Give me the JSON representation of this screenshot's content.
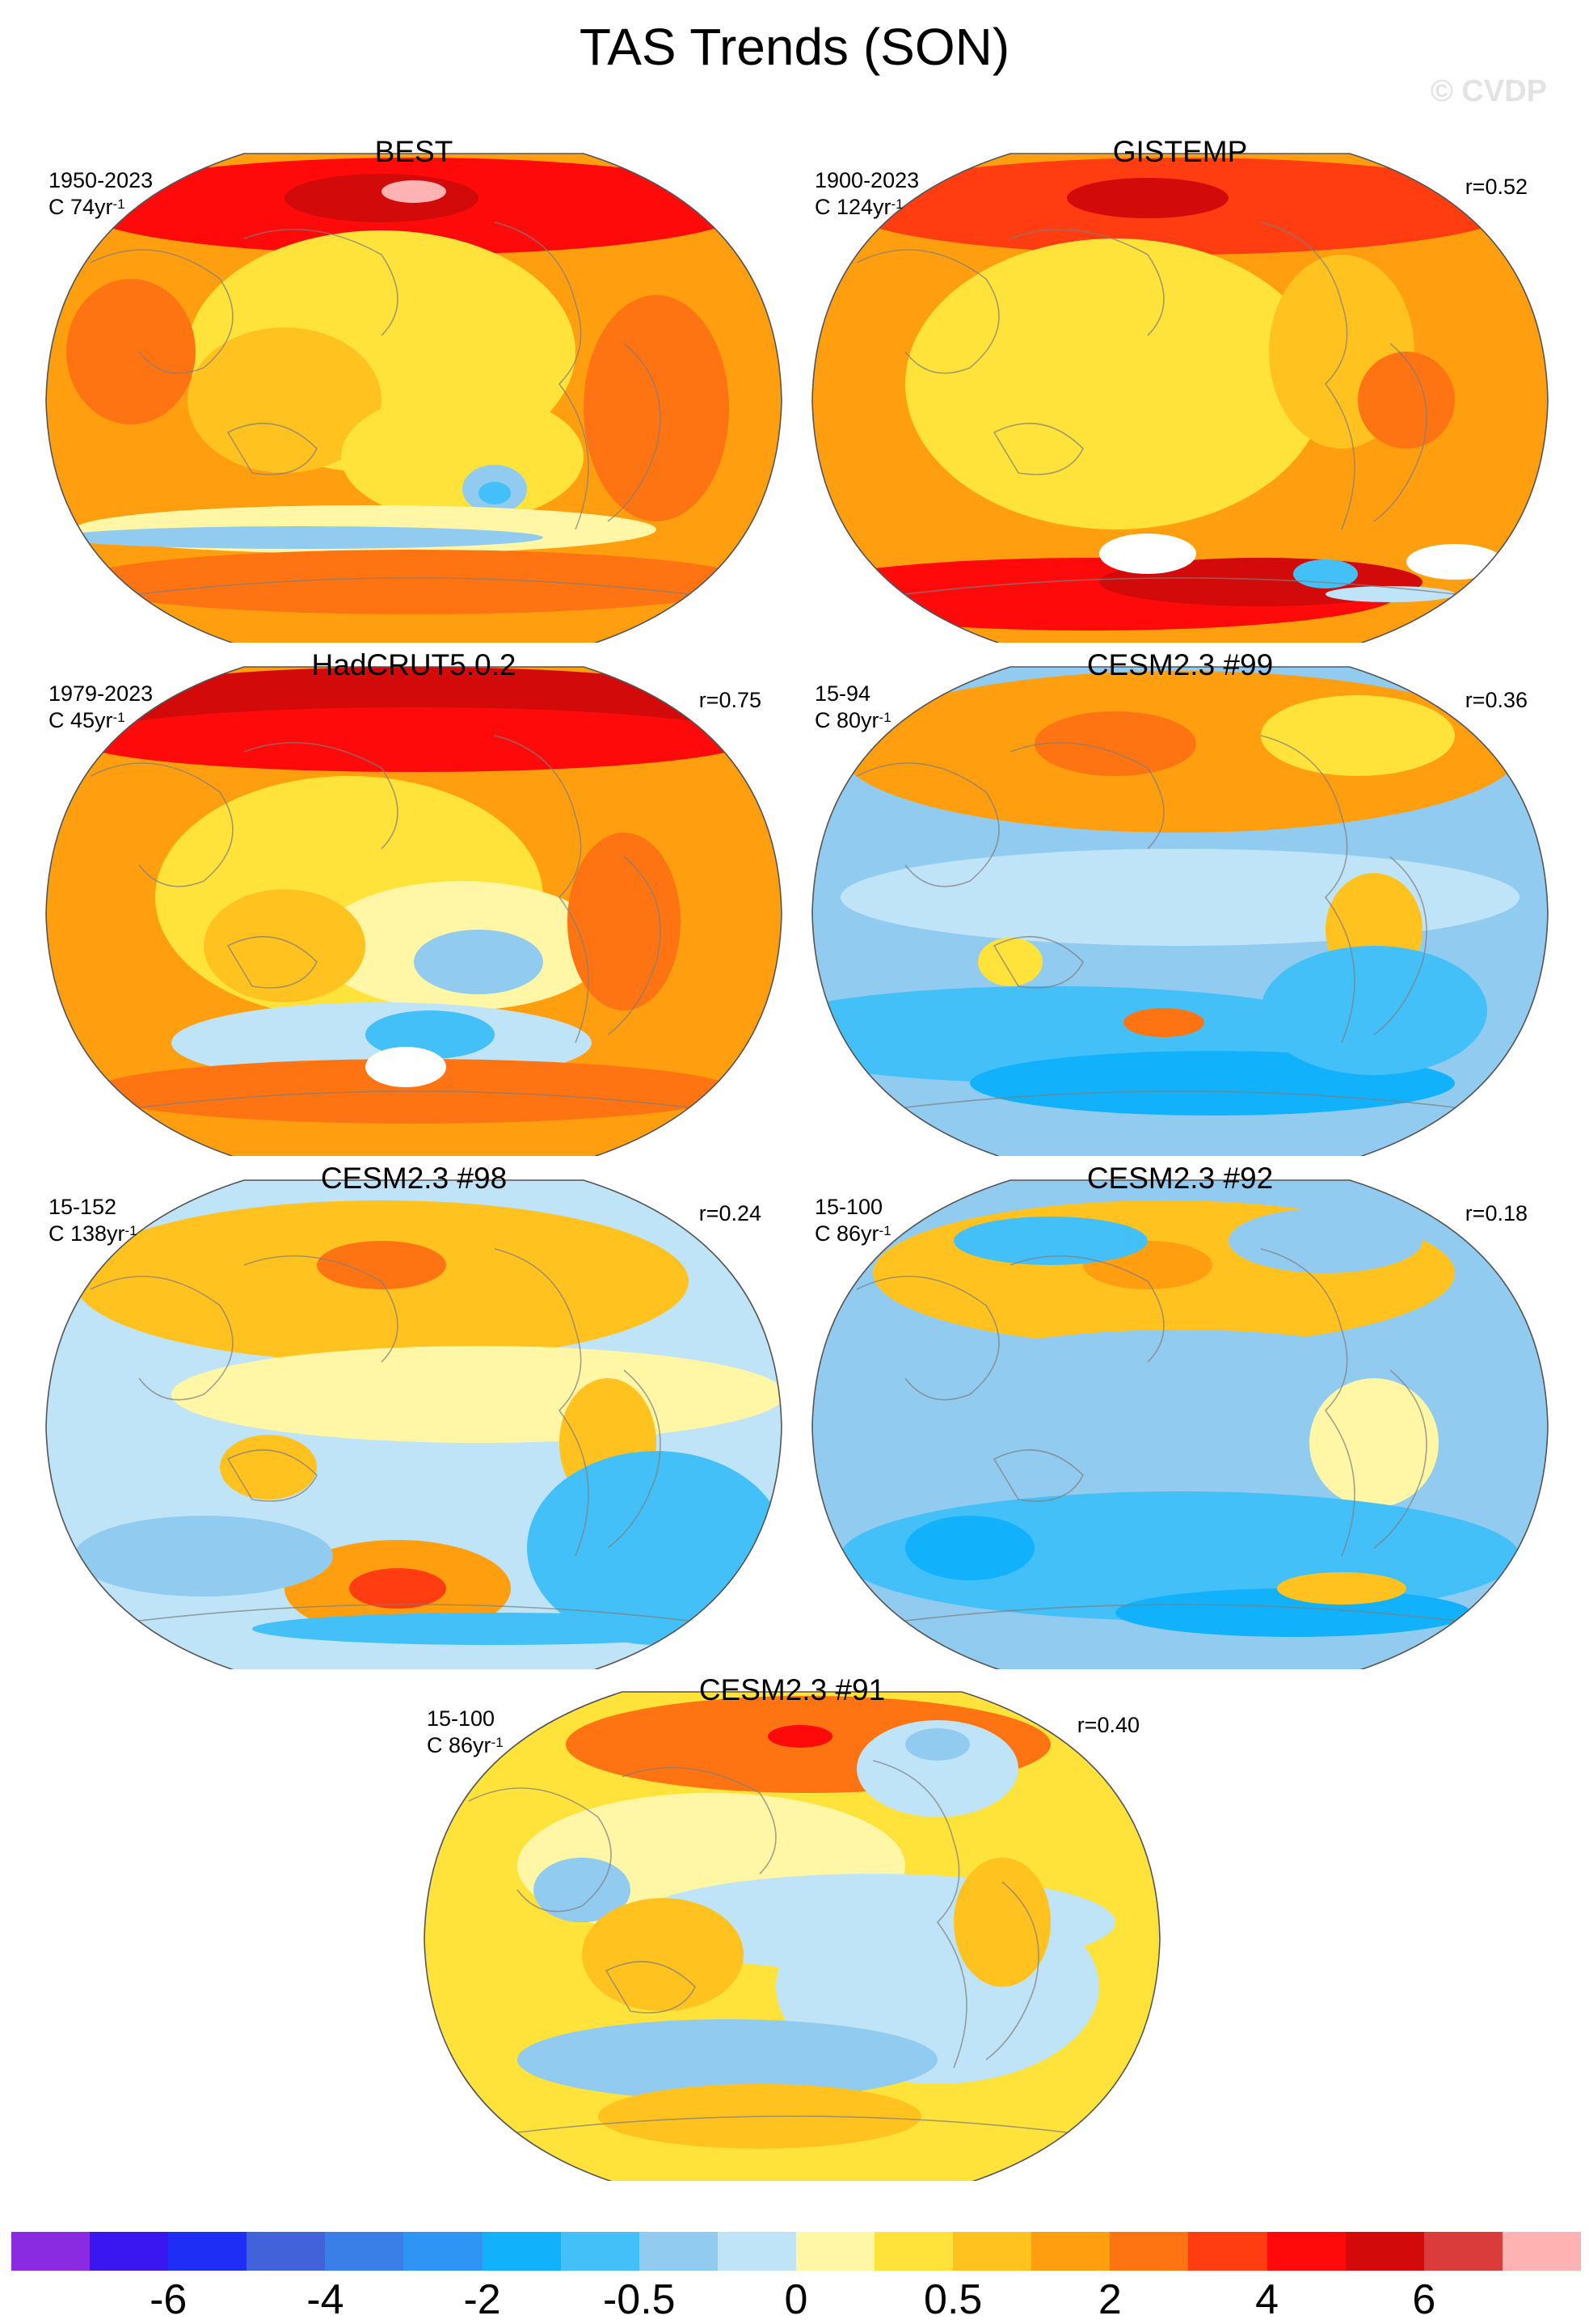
{
  "figure": {
    "title": "TAS Trends (SON)",
    "watermark": "© CVDP"
  },
  "panels": [
    {
      "id": "best",
      "title": "BEST",
      "period": "1950-2023",
      "units_prefix": "C ",
      "units_num": "74yr",
      "units_exp": "-1",
      "corr": "",
      "scheme": "best"
    },
    {
      "id": "gistemp",
      "title": "GISTEMP",
      "period": "1900-2023",
      "units_prefix": "C ",
      "units_num": "124yr",
      "units_exp": "-1",
      "corr": "r=0.52",
      "scheme": "gistemp"
    },
    {
      "id": "hadcrut",
      "title": "HadCRUT5.0.2",
      "period": "1979-2023",
      "units_prefix": "C ",
      "units_num": "45yr",
      "units_exp": "-1",
      "corr": "r=0.75",
      "scheme": "hadcrut"
    },
    {
      "id": "cesm99",
      "title": "CESM2.3 #99",
      "period": "15-94",
      "units_prefix": "C ",
      "units_num": "80yr",
      "units_exp": "-1",
      "corr": "r=0.36",
      "scheme": "cesm99"
    },
    {
      "id": "cesm98",
      "title": "CESM2.3 #98",
      "period": "15-152",
      "units_prefix": "C ",
      "units_num": "138yr",
      "units_exp": "-1",
      "corr": "r=0.24",
      "scheme": "cesm98"
    },
    {
      "id": "cesm92",
      "title": "CESM2.3 #92",
      "period": "15-100",
      "units_prefix": "C ",
      "units_num": "86yr",
      "units_exp": "-1",
      "corr": "r=0.18",
      "scheme": "cesm92"
    },
    {
      "id": "cesm91",
      "title": "CESM2.3 #91",
      "period": "15-100",
      "units_prefix": "C ",
      "units_num": "86yr",
      "units_exp": "-1",
      "corr": "r=0.40",
      "scheme": "cesm91"
    }
  ],
  "colorbar": {
    "colors": [
      "#8a2be2",
      "#3a16f0",
      "#1e2ef5",
      "#4162d8",
      "#3a7ee8",
      "#2f95f5",
      "#12b1fb",
      "#44c0f8",
      "#92cbf0",
      "#bfe3f7",
      "#fff7a6",
      "#ffe23a",
      "#ffc21f",
      "#ff9e0f",
      "#ff7412",
      "#ff3d10",
      "#ff0a0a",
      "#d20a0a",
      "#da3c3c",
      "#ffb2b2"
    ],
    "labels": [
      "-6",
      "-4",
      "-2",
      "-0.5",
      "0",
      "0.5",
      "2",
      "4",
      "6"
    ]
  }
}
